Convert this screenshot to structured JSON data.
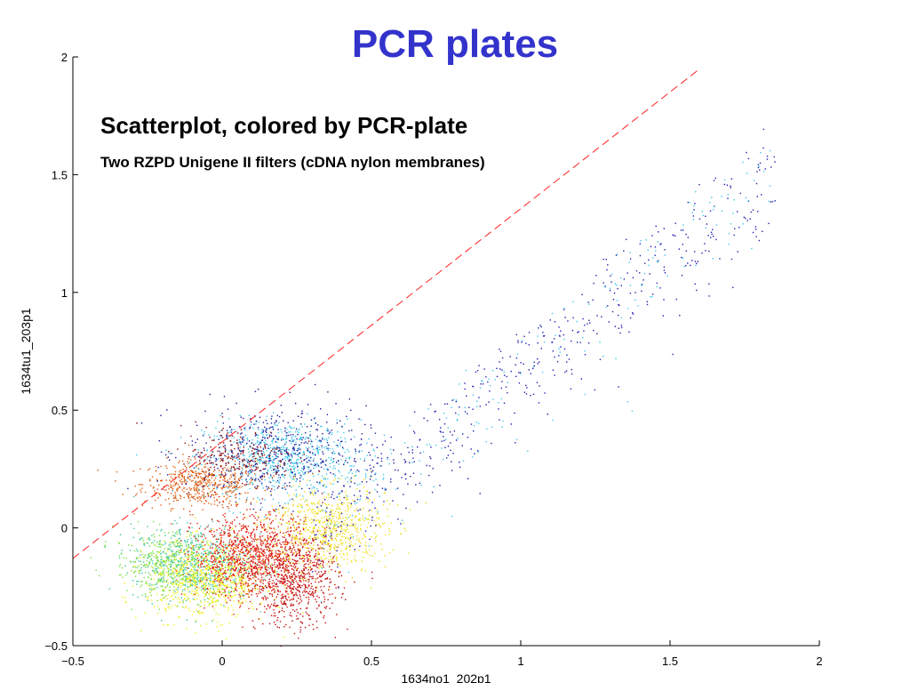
{
  "slide": {
    "title": "PCR plates"
  },
  "chart_data": {
    "type": "scatter",
    "title": "Scatterplot, colored by PCR-plate",
    "subtitle": "Two RZPD Unigene II filters (cDNA nylon membranes)",
    "xlabel": "1634no1_202p1",
    "ylabel": "1634tu1_203p1",
    "xlim": [
      -0.5,
      2
    ],
    "ylim": [
      -0.5,
      2
    ],
    "xticks": [
      -0.5,
      0,
      0.5,
      1,
      1.5,
      2
    ],
    "yticks": [
      -0.5,
      0,
      0.5,
      1,
      1.5,
      2
    ],
    "xtick_labels": [
      "−0.5",
      "0",
      "0.5",
      "1",
      "1.5",
      "2"
    ],
    "ytick_labels": [
      "−0.5",
      "0",
      "0.5",
      "1",
      "1.5",
      "2"
    ],
    "grid": false,
    "reference_line": {
      "style": "dashed",
      "color": "#ff2020",
      "points": [
        [
          -0.5,
          -0.13
        ],
        [
          1.6,
          1.95
        ]
      ]
    },
    "clusters": [
      {
        "color": "#e06010",
        "center": [
          -0.07,
          0.19
        ],
        "spread": [
          0.1,
          0.05
        ],
        "count": 500
      },
      {
        "color": "#40c8e8",
        "center": [
          0.2,
          0.3
        ],
        "spread": [
          0.13,
          0.08
        ],
        "count": 700
      },
      {
        "color": "#2020a0",
        "center": [
          0.18,
          0.32
        ],
        "spread": [
          0.15,
          0.1
        ],
        "count": 500
      },
      {
        "color": "#8b1010",
        "center": [
          0.05,
          0.3
        ],
        "spread": [
          0.1,
          0.07
        ],
        "count": 250
      },
      {
        "color": "#40c8a0",
        "center": [
          -0.1,
          -0.15
        ],
        "spread": [
          0.1,
          0.08
        ],
        "count": 700
      },
      {
        "color": "#f0f020",
        "center": [
          -0.05,
          -0.22
        ],
        "spread": [
          0.1,
          0.08
        ],
        "count": 800
      },
      {
        "color": "#e02010",
        "center": [
          0.1,
          -0.12
        ],
        "spread": [
          0.1,
          0.09
        ],
        "count": 1100
      },
      {
        "color": "#c01010",
        "center": [
          0.25,
          -0.22
        ],
        "spread": [
          0.07,
          0.1
        ],
        "count": 600
      },
      {
        "color": "#f0e020",
        "center": [
          0.35,
          0.0
        ],
        "spread": [
          0.1,
          0.09
        ],
        "count": 700
      },
      {
        "color": "#80e040",
        "center": [
          -0.2,
          -0.15
        ],
        "spread": [
          0.08,
          0.07
        ],
        "count": 300
      },
      {
        "color": "#2020b0",
        "center": [
          1.1,
          1.05
        ],
        "spread": [
          0.35,
          0.35
        ],
        "count": 500,
        "along_diagonal": true
      },
      {
        "color": "#40c8e8",
        "center": [
          0.9,
          0.7
        ],
        "spread": [
          0.4,
          0.35
        ],
        "count": 200,
        "along_diagonal": true
      }
    ]
  }
}
